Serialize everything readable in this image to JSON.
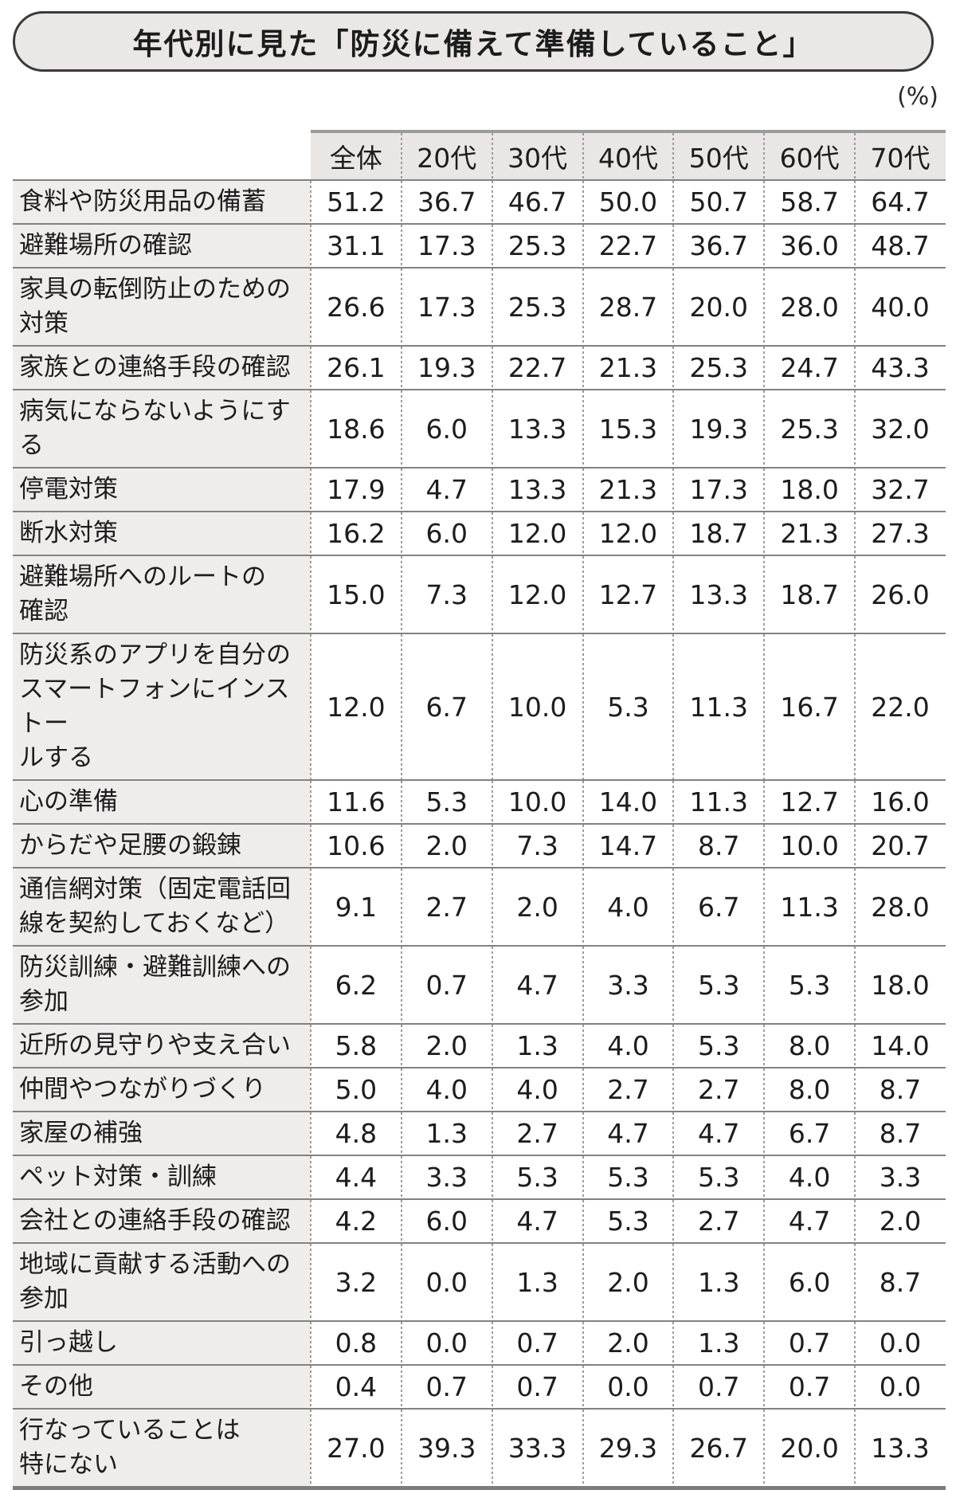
{
  "title": "年代別に見た「防災に備えて準備していること」",
  "unit_label": "(%)",
  "colors": {
    "title_bg": "#e9e8e6",
    "header_bg": "#e8e7e5",
    "label_bg": "#efedeb",
    "row_line": "#828282",
    "dash_line": "#9c9c9c",
    "text": "#1d1d1d"
  },
  "chart_data": {
    "type": "table",
    "title": "年代別に見た「防災に備えて準備していること」",
    "unit": "%",
    "columns": [
      "全体",
      "20代",
      "30代",
      "40代",
      "50代",
      "60代",
      "70代"
    ],
    "rows": [
      {
        "label": "食料や防災用品の備蓄",
        "values": [
          "51.2",
          "36.7",
          "46.7",
          "50.0",
          "50.7",
          "58.7",
          "64.7"
        ]
      },
      {
        "label": "避難場所の確認",
        "values": [
          "31.1",
          "17.3",
          "25.3",
          "22.7",
          "36.7",
          "36.0",
          "48.7"
        ]
      },
      {
        "label": "家具の転倒防止のための\n対策",
        "values": [
          "26.6",
          "17.3",
          "25.3",
          "28.7",
          "20.0",
          "28.0",
          "40.0"
        ]
      },
      {
        "label": "家族との連絡手段の確認",
        "values": [
          "26.1",
          "19.3",
          "22.7",
          "21.3",
          "25.3",
          "24.7",
          "43.3"
        ]
      },
      {
        "label": "病気にならないようにする",
        "values": [
          "18.6",
          "6.0",
          "13.3",
          "15.3",
          "19.3",
          "25.3",
          "32.0"
        ]
      },
      {
        "label": "停電対策",
        "values": [
          "17.9",
          "4.7",
          "13.3",
          "21.3",
          "17.3",
          "18.0",
          "32.7"
        ]
      },
      {
        "label": "断水対策",
        "values": [
          "16.2",
          "6.0",
          "12.0",
          "12.0",
          "18.7",
          "21.3",
          "27.3"
        ]
      },
      {
        "label": "避難場所へのルートの\n確認",
        "values": [
          "15.0",
          "7.3",
          "12.0",
          "12.7",
          "13.3",
          "18.7",
          "26.0"
        ]
      },
      {
        "label": "防災系のアプリを自分の\nスマートフォンにインストー\nルする",
        "values": [
          "12.0",
          "6.7",
          "10.0",
          "5.3",
          "11.3",
          "16.7",
          "22.0"
        ]
      },
      {
        "label": "心の準備",
        "values": [
          "11.6",
          "5.3",
          "10.0",
          "14.0",
          "11.3",
          "12.7",
          "16.0"
        ]
      },
      {
        "label": "からだや足腰の鍛錬",
        "values": [
          "10.6",
          "2.0",
          "7.3",
          "14.7",
          "8.7",
          "10.0",
          "20.7"
        ]
      },
      {
        "label": "通信網対策（固定電話回\n線を契約しておくなど）",
        "values": [
          "9.1",
          "2.7",
          "2.0",
          "4.0",
          "6.7",
          "11.3",
          "28.0"
        ]
      },
      {
        "label": "防災訓練・避難訓練への\n参加",
        "values": [
          "6.2",
          "0.7",
          "4.7",
          "3.3",
          "5.3",
          "5.3",
          "18.0"
        ]
      },
      {
        "label": "近所の見守りや支え合い",
        "values": [
          "5.8",
          "2.0",
          "1.3",
          "4.0",
          "5.3",
          "8.0",
          "14.0"
        ]
      },
      {
        "label": "仲間やつながりづくり",
        "values": [
          "5.0",
          "4.0",
          "4.0",
          "2.7",
          "2.7",
          "8.0",
          "8.7"
        ]
      },
      {
        "label": "家屋の補強",
        "values": [
          "4.8",
          "1.3",
          "2.7",
          "4.7",
          "4.7",
          "6.7",
          "8.7"
        ]
      },
      {
        "label": "ペット対策・訓練",
        "values": [
          "4.4",
          "3.3",
          "5.3",
          "5.3",
          "5.3",
          "4.0",
          "3.3"
        ]
      },
      {
        "label": "会社との連絡手段の確認",
        "values": [
          "4.2",
          "6.0",
          "4.7",
          "5.3",
          "2.7",
          "4.7",
          "2.0"
        ]
      },
      {
        "label": "地域に貢献する活動への\n参加",
        "values": [
          "3.2",
          "0.0",
          "1.3",
          "2.0",
          "1.3",
          "6.0",
          "8.7"
        ]
      },
      {
        "label": "引っ越し",
        "values": [
          "0.8",
          "0.0",
          "0.7",
          "2.0",
          "1.3",
          "0.7",
          "0.0"
        ]
      },
      {
        "label": "その他",
        "values": [
          "0.4",
          "0.7",
          "0.7",
          "0.0",
          "0.7",
          "0.7",
          "0.0"
        ]
      },
      {
        "label": "行なっていることは\n特にない",
        "values": [
          "27.0",
          "39.3",
          "33.3",
          "29.3",
          "26.7",
          "20.0",
          "13.3"
        ]
      }
    ]
  }
}
